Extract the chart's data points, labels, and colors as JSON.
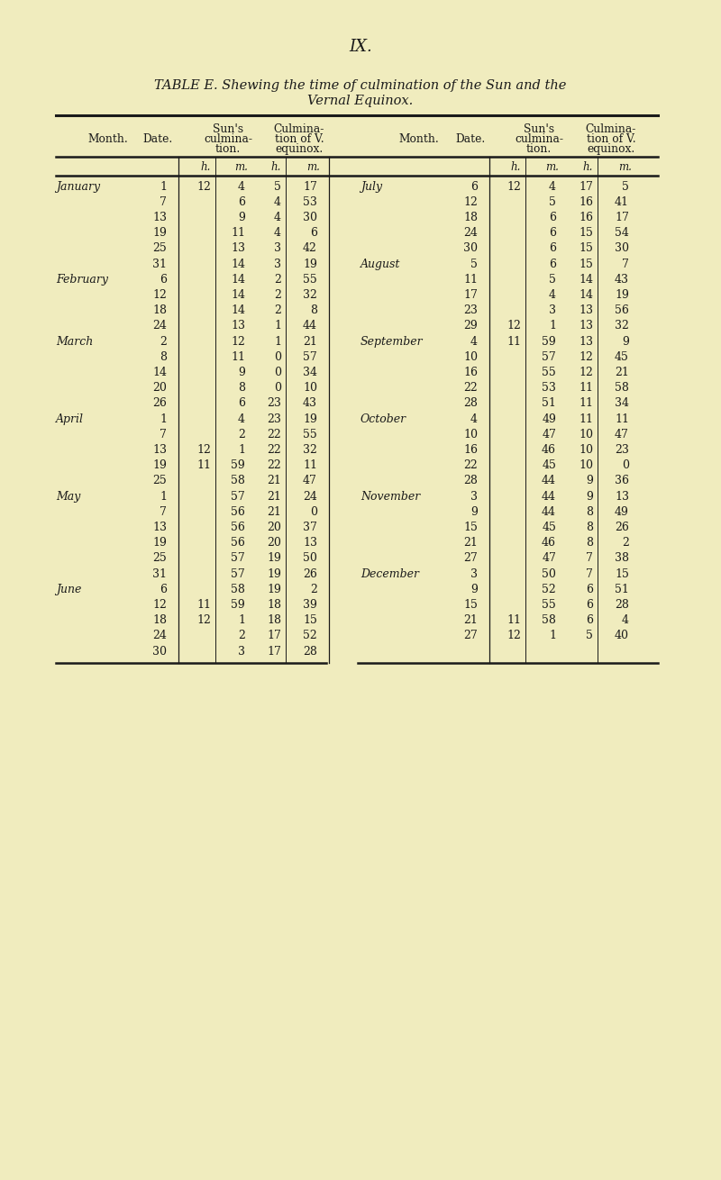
{
  "page_num": "IX.",
  "title_line1": "TABLE E. Shewing the time of culmination of the Sun and the",
  "title_line2": "Vernal Equinox.",
  "bg_color": "#f0ecbe",
  "text_color": "#1a1a1a",
  "rows": [
    [
      "January",
      "1",
      "12",
      "4",
      "5",
      "17",
      "July",
      "6",
      "12",
      "4",
      "17",
      "5"
    ],
    [
      "",
      "7",
      "",
      "6",
      "4",
      "53",
      "",
      "12",
      "",
      "5",
      "16",
      "41"
    ],
    [
      "",
      "13",
      "",
      "9",
      "4",
      "30",
      "",
      "18",
      "",
      "6",
      "16",
      "17"
    ],
    [
      "",
      "19",
      "",
      "11",
      "4",
      "6",
      "",
      "24",
      "",
      "6",
      "15",
      "54"
    ],
    [
      "",
      "25",
      "",
      "13",
      "3",
      "42",
      "",
      "30",
      "",
      "6",
      "15",
      "30"
    ],
    [
      "",
      "31",
      "",
      "14",
      "3",
      "19",
      "August",
      "5",
      "",
      "6",
      "15",
      "7"
    ],
    [
      "February",
      "6",
      "",
      "14",
      "2",
      "55",
      "",
      "11",
      "",
      "5",
      "14",
      "43"
    ],
    [
      "",
      "12",
      "",
      "14",
      "2",
      "32",
      "",
      "17",
      "",
      "4",
      "14",
      "19"
    ],
    [
      "",
      "18",
      "",
      "14",
      "2",
      "8",
      "",
      "23",
      "",
      "3",
      "13",
      "56"
    ],
    [
      "",
      "24",
      "",
      "13",
      "1",
      "44",
      "",
      "29",
      "12",
      "1",
      "13",
      "32"
    ],
    [
      "March",
      "2",
      "",
      "12",
      "1",
      "21",
      "September",
      "4",
      "11",
      "59",
      "13",
      "9"
    ],
    [
      "",
      "8",
      "",
      "11",
      "0",
      "57",
      "",
      "10",
      "",
      "57",
      "12",
      "45"
    ],
    [
      "",
      "14",
      "",
      "9",
      "0",
      "34",
      "",
      "16",
      "",
      "55",
      "12",
      "21"
    ],
    [
      "",
      "20",
      "",
      "8",
      "0",
      "10",
      "",
      "22",
      "",
      "53",
      "11",
      "58"
    ],
    [
      "",
      "26",
      "",
      "6",
      "23",
      "43",
      "",
      "28",
      "",
      "51",
      "11",
      "34"
    ],
    [
      "April",
      "1",
      "",
      "4",
      "23",
      "19",
      "October",
      "4",
      "",
      "49",
      "11",
      "11"
    ],
    [
      "",
      "7",
      "",
      "2",
      "22",
      "55",
      "",
      "10",
      "",
      "47",
      "10",
      "47"
    ],
    [
      "",
      "13",
      "12",
      "1",
      "22",
      "32",
      "",
      "16",
      "",
      "46",
      "10",
      "23"
    ],
    [
      "",
      "19",
      "11",
      "59",
      "22",
      "11",
      "",
      "22",
      "",
      "45",
      "10",
      "0"
    ],
    [
      "",
      "25",
      "",
      "58",
      "21",
      "47",
      "",
      "28",
      "",
      "44",
      "9",
      "36"
    ],
    [
      "May",
      "1",
      "",
      "57",
      "21",
      "24",
      "November",
      "3",
      "",
      "44",
      "9",
      "13"
    ],
    [
      "",
      "7",
      "",
      "56",
      "21",
      "0",
      "",
      "9",
      "",
      "44",
      "8",
      "49"
    ],
    [
      "",
      "13",
      "",
      "56",
      "20",
      "37",
      "",
      "15",
      "",
      "45",
      "8",
      "26"
    ],
    [
      "",
      "19",
      "",
      "56",
      "20",
      "13",
      "",
      "21",
      "",
      "46",
      "8",
      "2"
    ],
    [
      "",
      "25",
      "",
      "57",
      "19",
      "50",
      "",
      "27",
      "",
      "47",
      "7",
      "38"
    ],
    [
      "",
      "31",
      "",
      "57",
      "19",
      "26",
      "December",
      "3",
      "",
      "50",
      "7",
      "15"
    ],
    [
      "June",
      "6",
      "",
      "58",
      "19",
      "2",
      "",
      "9",
      "",
      "52",
      "6",
      "51"
    ],
    [
      "",
      "12",
      "11",
      "59",
      "18",
      "39",
      "",
      "15",
      "",
      "55",
      "6",
      "28"
    ],
    [
      "",
      "18",
      "12",
      "1",
      "18",
      "15",
      "",
      "21",
      "11",
      "58",
      "6",
      "4"
    ],
    [
      "",
      "24",
      "",
      "2",
      "17",
      "52",
      "",
      "27",
      "12",
      "1",
      "5",
      "40"
    ],
    [
      "",
      "30",
      "",
      "3",
      "17",
      "28",
      "",
      "",
      "",
      "",
      "",
      ""
    ]
  ]
}
